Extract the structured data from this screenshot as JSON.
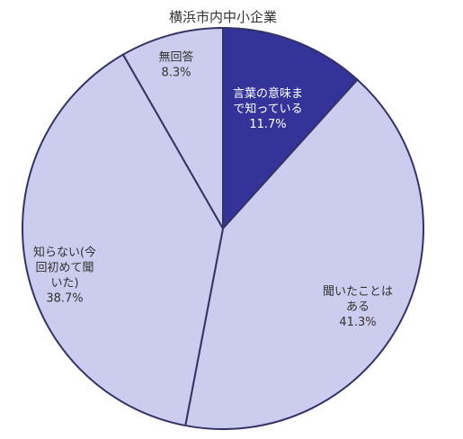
{
  "chart_data": {
    "type": "pie",
    "title": "横浜市内中小企業",
    "slices": [
      {
        "label_lines": [
          "言葉の意味ま",
          "で知っている",
          "11.7%"
        ],
        "value": 11.7,
        "color": "#333399",
        "text_color": "#ffffff"
      },
      {
        "label_lines": [
          "聞いたことは",
          "ある",
          "41.3%"
        ],
        "value": 41.3,
        "color": "#ccccee",
        "text_color": "#333333"
      },
      {
        "label_lines": [
          "知らない(今",
          "回初めて聞",
          "いた)",
          "38.7%"
        ],
        "value": 38.7,
        "color": "#ccccee",
        "text_color": "#333333"
      },
      {
        "label_lines": [
          "無回答",
          "8.3%"
        ],
        "value": 8.3,
        "color": "#ccccee",
        "text_color": "#333333"
      }
    ],
    "start_angle": "12 o'clock",
    "direction": "clockwise",
    "slice_border_color": "#333366",
    "legend": "none"
  }
}
